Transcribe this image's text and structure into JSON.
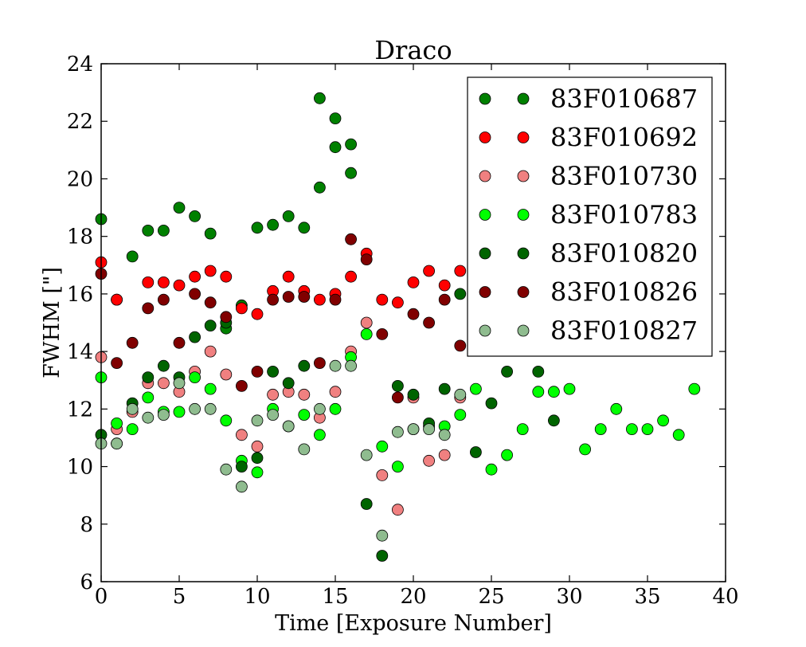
{
  "chart_data": {
    "type": "scatter",
    "title": "Draco",
    "xlabel": "Time [Exposure Number]",
    "ylabel": "FWHM [\"]",
    "xlim": [
      0,
      40
    ],
    "ylim": [
      6,
      24
    ],
    "xticks": [
      0,
      5,
      10,
      15,
      20,
      25,
      30,
      35,
      40
    ],
    "yticks": [
      6,
      8,
      10,
      12,
      14,
      16,
      18,
      20,
      22,
      24
    ],
    "grid": false,
    "legend_position": "top-right",
    "series": [
      {
        "name": "83F010687",
        "color": "#008000",
        "points": [
          [
            0,
            18.6
          ],
          [
            1,
            15.8
          ],
          [
            2,
            17.3
          ],
          [
            3,
            18.2
          ],
          [
            4,
            18.2
          ],
          [
            5,
            19.0
          ],
          [
            6,
            18.7
          ],
          [
            7,
            18.1
          ],
          [
            8,
            14.8
          ],
          [
            9,
            15.6
          ],
          [
            10,
            18.3
          ],
          [
            11,
            18.4
          ],
          [
            12,
            18.7
          ],
          [
            13,
            18.3
          ],
          [
            14,
            22.8
          ],
          [
            15,
            22.1
          ],
          [
            15,
            21.1
          ],
          [
            16,
            21.2
          ],
          [
            16,
            20.2
          ],
          [
            14,
            19.7
          ]
        ]
      },
      {
        "name": "83F010692",
        "color": "#ff0000",
        "points": [
          [
            0,
            17.1
          ],
          [
            1,
            15.8
          ],
          [
            3,
            16.4
          ],
          [
            4,
            16.4
          ],
          [
            5,
            16.3
          ],
          [
            6,
            16.6
          ],
          [
            7,
            16.8
          ],
          [
            8,
            16.6
          ],
          [
            9,
            15.5
          ],
          [
            10,
            15.3
          ],
          [
            11,
            16.1
          ],
          [
            12,
            16.6
          ],
          [
            13,
            16.1
          ],
          [
            14,
            15.8
          ],
          [
            15,
            16.0
          ],
          [
            16,
            16.6
          ],
          [
            17,
            17.4
          ],
          [
            18,
            15.8
          ],
          [
            19,
            15.7
          ],
          [
            20,
            16.4
          ],
          [
            21,
            16.8
          ],
          [
            22,
            16.3
          ],
          [
            23,
            16.8
          ]
        ]
      },
      {
        "name": "83F010730",
        "color": "#f08080",
        "points": [
          [
            0,
            13.8
          ],
          [
            1,
            11.3
          ],
          [
            2,
            11.9
          ],
          [
            3,
            12.9
          ],
          [
            4,
            12.9
          ],
          [
            5,
            12.6
          ],
          [
            6,
            13.3
          ],
          [
            7,
            14.0
          ],
          [
            8,
            13.2
          ],
          [
            9,
            11.1
          ],
          [
            10,
            10.7
          ],
          [
            11,
            12.5
          ],
          [
            12,
            12.6
          ],
          [
            13,
            12.5
          ],
          [
            14,
            11.7
          ],
          [
            15,
            12.6
          ],
          [
            16,
            14.0
          ],
          [
            17,
            15.0
          ],
          [
            18,
            9.7
          ],
          [
            19,
            8.5
          ],
          [
            20,
            12.4
          ],
          [
            21,
            10.2
          ],
          [
            22,
            10.4
          ],
          [
            23,
            12.4
          ]
        ]
      },
      {
        "name": "83F010783",
        "color": "#00ff00",
        "points": [
          [
            0,
            13.1
          ],
          [
            1,
            11.5
          ],
          [
            2,
            11.3
          ],
          [
            3,
            12.4
          ],
          [
            4,
            11.9
          ],
          [
            5,
            11.9
          ],
          [
            6,
            13.1
          ],
          [
            7,
            12.7
          ],
          [
            8,
            11.6
          ],
          [
            9,
            10.2
          ],
          [
            10,
            9.8
          ],
          [
            11,
            12.0
          ],
          [
            12,
            11.4
          ],
          [
            13,
            11.8
          ],
          [
            14,
            11.1
          ],
          [
            15,
            12.0
          ],
          [
            16,
            13.8
          ],
          [
            17,
            14.6
          ],
          [
            18,
            10.7
          ],
          [
            19,
            10.0
          ],
          [
            20,
            11.3
          ],
          [
            21,
            11.4
          ],
          [
            22,
            11.4
          ],
          [
            23,
            11.8
          ],
          [
            24,
            12.7
          ],
          [
            25,
            9.9
          ],
          [
            26,
            10.4
          ],
          [
            27,
            11.3
          ],
          [
            28,
            12.6
          ],
          [
            29,
            12.6
          ],
          [
            30,
            12.7
          ],
          [
            31,
            10.6
          ],
          [
            32,
            11.3
          ],
          [
            33,
            12.0
          ],
          [
            34,
            11.3
          ],
          [
            35,
            11.3
          ],
          [
            36,
            11.6
          ],
          [
            37,
            11.1
          ],
          [
            38,
            12.7
          ]
        ]
      },
      {
        "name": "83F010820",
        "color": "#006400",
        "points": [
          [
            0,
            11.1
          ],
          [
            1,
            10.8
          ],
          [
            2,
            12.2
          ],
          [
            3,
            13.1
          ],
          [
            4,
            13.5
          ],
          [
            5,
            13.1
          ],
          [
            6,
            14.5
          ],
          [
            7,
            14.9
          ],
          [
            8,
            15.0
          ],
          [
            9,
            10.0
          ],
          [
            10,
            10.3
          ],
          [
            11,
            13.3
          ],
          [
            12,
            12.9
          ],
          [
            13,
            13.5
          ],
          [
            17,
            8.7
          ],
          [
            18,
            6.9
          ],
          [
            19,
            12.8
          ],
          [
            20,
            12.5
          ],
          [
            21,
            11.5
          ],
          [
            22,
            12.7
          ],
          [
            23,
            16.0
          ],
          [
            24,
            10.5
          ],
          [
            25,
            12.2
          ],
          [
            26,
            13.3
          ],
          [
            28,
            13.3
          ],
          [
            29,
            11.6
          ]
        ]
      },
      {
        "name": "83F010826",
        "color": "#800000",
        "points": [
          [
            0,
            16.7
          ],
          [
            1,
            13.6
          ],
          [
            2,
            14.3
          ],
          [
            3,
            15.5
          ],
          [
            4,
            15.8
          ],
          [
            5,
            14.3
          ],
          [
            6,
            16.0
          ],
          [
            7,
            15.7
          ],
          [
            8,
            15.2
          ],
          [
            9,
            12.8
          ],
          [
            10,
            13.3
          ],
          [
            11,
            15.8
          ],
          [
            12,
            15.9
          ],
          [
            13,
            15.9
          ],
          [
            14,
            13.6
          ],
          [
            15,
            15.8
          ],
          [
            16,
            17.9
          ],
          [
            17,
            17.2
          ],
          [
            18,
            14.6
          ],
          [
            19,
            12.4
          ],
          [
            20,
            15.3
          ],
          [
            21,
            15.0
          ],
          [
            22,
            15.8
          ],
          [
            23,
            14.2
          ]
        ]
      },
      {
        "name": "83F010827",
        "color": "#8fbc8f",
        "points": [
          [
            0,
            10.8
          ],
          [
            1,
            10.8
          ],
          [
            2,
            12.0
          ],
          [
            3,
            11.7
          ],
          [
            4,
            11.8
          ],
          [
            5,
            12.9
          ],
          [
            6,
            12.0
          ],
          [
            7,
            12.0
          ],
          [
            8,
            9.9
          ],
          [
            9,
            9.3
          ],
          [
            10,
            11.6
          ],
          [
            11,
            11.8
          ],
          [
            12,
            11.4
          ],
          [
            13,
            10.6
          ],
          [
            14,
            12.0
          ],
          [
            15,
            13.5
          ],
          [
            16,
            13.5
          ],
          [
            17,
            10.4
          ],
          [
            18,
            7.6
          ],
          [
            19,
            11.2
          ],
          [
            20,
            11.3
          ],
          [
            21,
            11.3
          ],
          [
            22,
            11.1
          ],
          [
            23,
            12.5
          ]
        ]
      }
    ]
  }
}
